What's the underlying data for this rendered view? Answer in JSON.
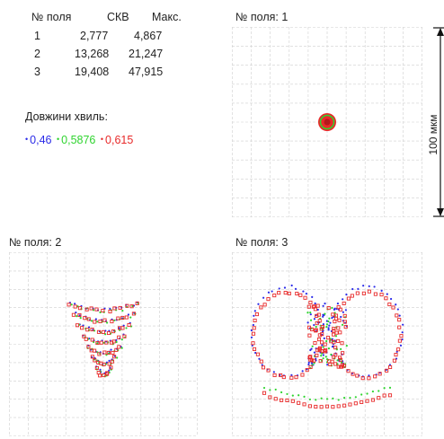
{
  "table": {
    "headers": [
      "№ поля",
      "СКВ",
      "Макс."
    ],
    "rows": [
      [
        "1",
        "2,777",
        "4,867"
      ],
      [
        "2",
        "13,268",
        "21,247"
      ],
      [
        "3",
        "19,408",
        "47,915"
      ]
    ]
  },
  "wavelengths": {
    "title": "Довжини хвиль:",
    "items": [
      {
        "label": "0,46",
        "color": "#2a2ae8"
      },
      {
        "label": "0,5876",
        "color": "#2fd42f"
      },
      {
        "label": "0,615",
        "color": "#e82a2a"
      }
    ]
  },
  "fields": [
    {
      "title": "№ поля: 1"
    },
    {
      "title": "№ поля: 2"
    },
    {
      "title": "№ поля: 3"
    }
  ],
  "scale": {
    "label": "100 мкм"
  }
}
